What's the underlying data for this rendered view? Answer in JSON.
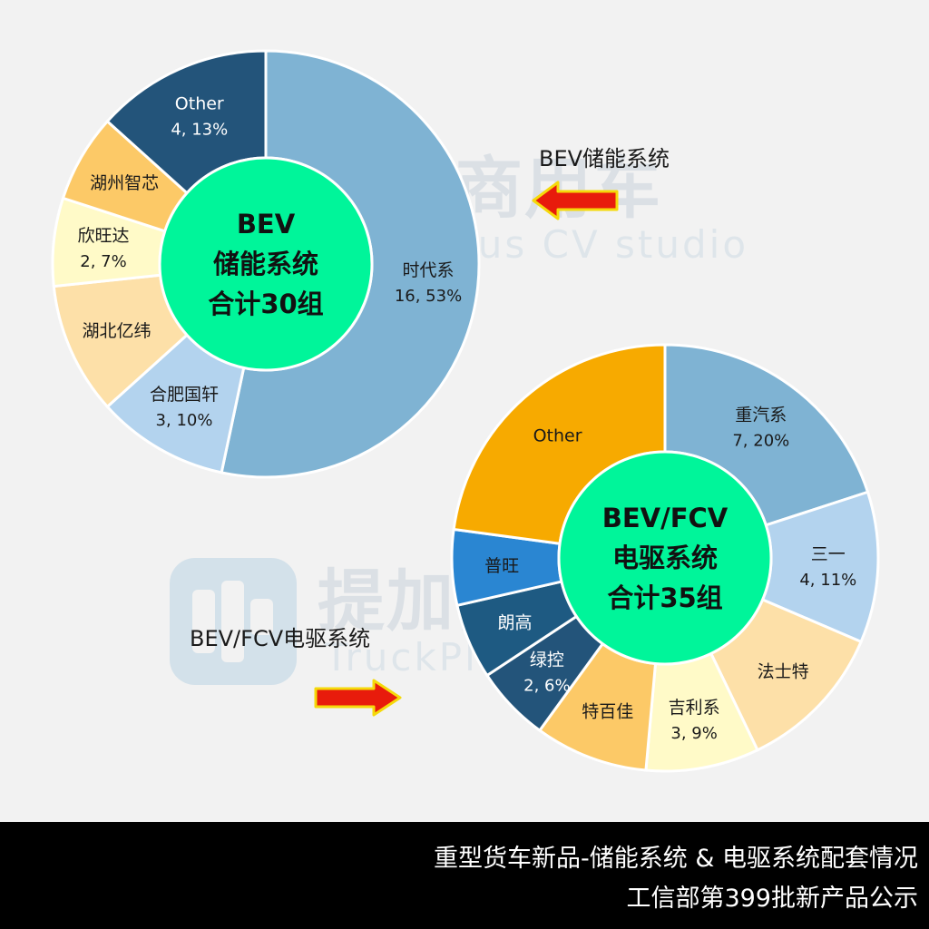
{
  "watermark": {
    "cn": "提加商用车",
    "en": "TruckPlus CV studio"
  },
  "callouts": {
    "bev_storage": "BEV储能系统",
    "bev_fcv_drive": "BEV/FCV电驱系统"
  },
  "footer": {
    "line1": "重型货车新品-储能系统 & 电驱系统配套情况",
    "line2": "工信部第399批新产品公示"
  },
  "colors": {
    "center_green": "#00f59a",
    "arrow_red": "#e81b0c",
    "arrow_border": "#f5d90a"
  },
  "chart_data": [
    {
      "type": "pie",
      "variant": "donut",
      "center_label": [
        "BEV",
        "储能系统",
        "合计30组"
      ],
      "total": 30,
      "slices": [
        {
          "label": "时代系",
          "value": 16,
          "percent": "53%",
          "value_label": "16, 53%",
          "color": "#7fb3d3",
          "text_color": "#1a1a1a"
        },
        {
          "label": "合肥国轩",
          "value": 3,
          "percent": "10%",
          "value_label": "3, 10%",
          "color": "#b3d3ee",
          "text_color": "#1a1a1a"
        },
        {
          "label": "湖北亿纬",
          "value": 3,
          "value_label": "",
          "color": "#fde0a8",
          "text_color": "#1a1a1a"
        },
        {
          "label": "欣旺达",
          "value": 2,
          "percent": "7%",
          "value_label": "2, 7%",
          "color": "#fffac8",
          "text_color": "#1a1a1a"
        },
        {
          "label": "湖州智芯",
          "value": 2,
          "value_label": "",
          "color": "#fcc967",
          "text_color": "#1a1a1a"
        },
        {
          "label": "Other",
          "value": 4,
          "percent": "13%",
          "value_label": "4, 13%",
          "color": "#23547a",
          "text_color": "#ffffff"
        }
      ]
    },
    {
      "type": "pie",
      "variant": "donut",
      "center_label": [
        "BEV/FCV",
        "电驱系统",
        "合计35组"
      ],
      "total": 35,
      "slices": [
        {
          "label": "重汽系",
          "value": 7,
          "percent": "20%",
          "value_label": "7, 20%",
          "color": "#7fb3d3",
          "text_color": "#1a1a1a"
        },
        {
          "label": "三一",
          "value": 4,
          "percent": "11%",
          "value_label": "4, 11%",
          "color": "#b3d3ee",
          "text_color": "#1a1a1a"
        },
        {
          "label": "法士特",
          "value": 4,
          "value_label": "",
          "color": "#fde0a8",
          "text_color": "#1a1a1a"
        },
        {
          "label": "吉利系",
          "value": 3,
          "percent": "9%",
          "value_label": "3, 9%",
          "color": "#fffac8",
          "text_color": "#1a1a1a"
        },
        {
          "label": "特百佳",
          "value": 3,
          "value_label": "",
          "color": "#fcc967",
          "text_color": "#1a1a1a"
        },
        {
          "label": "绿控",
          "value": 2,
          "percent": "6%",
          "value_label": "2, 6%",
          "color": "#23547a",
          "text_color": "#ffffff"
        },
        {
          "label": "朗高",
          "value": 2,
          "value_label": "",
          "color": "#1e5a82",
          "text_color": "#ffffff"
        },
        {
          "label": "普旺",
          "value": 2,
          "value_label": "",
          "color": "#2a86d2",
          "text_color": "#1a1a1a"
        },
        {
          "label": "Other",
          "value": 8,
          "value_label": "",
          "color": "#f7aa00",
          "text_color": "#1a1a1a"
        }
      ]
    }
  ]
}
